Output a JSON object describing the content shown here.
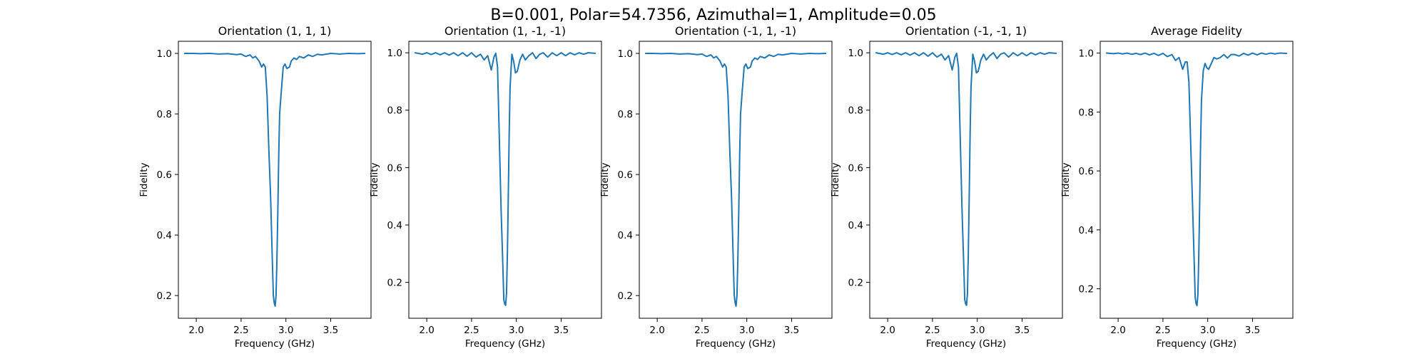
{
  "figure": {
    "suptitle": "B=0.001, Polar=54.7356, Azimuthal=1, Amplitude=0.05",
    "line_color": "#1f77b4"
  },
  "chart_data": [
    {
      "type": "line",
      "title": "Orientation (1, 1, 1)",
      "xlabel": "Frequency (GHz)",
      "ylabel": "Fidelity",
      "xlim": [
        1.8,
        3.95
      ],
      "ylim": [
        0.125,
        1.04
      ],
      "xticks": [
        "2.0",
        "2.5",
        "3.0",
        "3.5"
      ],
      "yticks": [
        "0.2",
        "0.4",
        "0.6",
        "0.8",
        "1.0"
      ],
      "grid": false,
      "series": [
        {
          "x": [
            1.87,
            1.95,
            2.05,
            2.15,
            2.25,
            2.35,
            2.45,
            2.5,
            2.55,
            2.6,
            2.63,
            2.66,
            2.7,
            2.73,
            2.75,
            2.77,
            2.79,
            2.81,
            2.83,
            2.85,
            2.86,
            2.87,
            2.88,
            2.89,
            2.9,
            2.91,
            2.92,
            2.93,
            2.95,
            2.97,
            2.99,
            3.01,
            3.04,
            3.06,
            3.09,
            3.12,
            3.15,
            3.2,
            3.25,
            3.3,
            3.35,
            3.4,
            3.5,
            3.6,
            3.7,
            3.8,
            3.88
          ],
          "y": [
            1.0,
            1.0,
            0.999,
            1.0,
            0.998,
            0.999,
            0.996,
            0.998,
            0.99,
            0.995,
            0.985,
            0.99,
            0.975,
            0.955,
            0.965,
            0.955,
            0.86,
            0.68,
            0.52,
            0.3,
            0.2,
            0.175,
            0.165,
            0.2,
            0.32,
            0.48,
            0.66,
            0.8,
            0.88,
            0.955,
            0.965,
            0.95,
            0.955,
            0.975,
            0.985,
            0.98,
            0.99,
            0.985,
            0.995,
            0.99,
            0.997,
            0.995,
            1.0,
            0.998,
            1.0,
            0.999,
            1.0
          ]
        }
      ]
    },
    {
      "type": "line",
      "title": "Orientation (1, -1, -1)",
      "xlabel": "Frequency (GHz)",
      "ylabel": "Fidelity",
      "xlim": [
        1.8,
        3.95
      ],
      "ylim": [
        0.075,
        1.04
      ],
      "xticks": [
        "2.0",
        "2.5",
        "3.0",
        "3.5"
      ],
      "yticks": [
        "0.2",
        "0.4",
        "0.6",
        "0.8",
        "1.0"
      ],
      "grid": false,
      "series": [
        {
          "x": [
            1.87,
            1.95,
            2.0,
            2.05,
            2.1,
            2.15,
            2.2,
            2.25,
            2.3,
            2.35,
            2.4,
            2.45,
            2.5,
            2.55,
            2.6,
            2.64,
            2.68,
            2.72,
            2.75,
            2.77,
            2.79,
            2.81,
            2.83,
            2.85,
            2.86,
            2.87,
            2.88,
            2.89,
            2.9,
            2.91,
            2.92,
            2.93,
            2.95,
            2.97,
            2.99,
            3.01,
            3.04,
            3.07,
            3.1,
            3.14,
            3.18,
            3.22,
            3.26,
            3.3,
            3.35,
            3.4,
            3.45,
            3.5,
            3.55,
            3.6,
            3.65,
            3.7,
            3.75,
            3.8,
            3.88
          ],
          "y": [
            1.0,
            0.995,
            1.0,
            0.994,
            1.0,
            0.993,
            1.0,
            0.992,
            1.0,
            0.99,
            1.0,
            0.988,
            1.0,
            0.985,
            0.995,
            0.975,
            0.99,
            0.94,
            0.985,
            0.998,
            0.95,
            0.7,
            0.45,
            0.25,
            0.14,
            0.125,
            0.12,
            0.16,
            0.3,
            0.5,
            0.72,
            0.88,
            0.995,
            0.97,
            0.93,
            0.935,
            0.975,
            0.995,
            0.975,
            0.99,
            1.0,
            0.98,
            0.995,
            1.0,
            0.985,
            1.0,
            0.99,
            1.0,
            0.99,
            1.0,
            0.993,
            1.0,
            0.995,
            1.0,
            0.998
          ]
        }
      ]
    },
    {
      "type": "line",
      "title": "Orientation (-1, 1, -1)",
      "xlabel": "Frequency (GHz)",
      "ylabel": "Fidelity",
      "xlim": [
        1.8,
        3.95
      ],
      "ylim": [
        0.125,
        1.04
      ],
      "xticks": [
        "2.0",
        "2.5",
        "3.0",
        "3.5"
      ],
      "yticks": [
        "0.2",
        "0.4",
        "0.6",
        "0.8",
        "1.0"
      ],
      "grid": false,
      "series": [
        {
          "x": [
            1.87,
            1.95,
            2.05,
            2.15,
            2.25,
            2.35,
            2.45,
            2.5,
            2.55,
            2.6,
            2.63,
            2.66,
            2.7,
            2.73,
            2.75,
            2.77,
            2.79,
            2.81,
            2.83,
            2.85,
            2.86,
            2.87,
            2.88,
            2.89,
            2.9,
            2.91,
            2.92,
            2.93,
            2.95,
            2.97,
            2.99,
            3.01,
            3.04,
            3.06,
            3.09,
            3.12,
            3.15,
            3.2,
            3.25,
            3.3,
            3.35,
            3.4,
            3.5,
            3.6,
            3.7,
            3.8,
            3.88
          ],
          "y": [
            1.0,
            1.0,
            0.999,
            1.0,
            0.998,
            0.999,
            0.996,
            0.998,
            0.99,
            0.995,
            0.985,
            0.99,
            0.975,
            0.955,
            0.965,
            0.955,
            0.86,
            0.68,
            0.52,
            0.3,
            0.2,
            0.175,
            0.165,
            0.2,
            0.32,
            0.48,
            0.66,
            0.8,
            0.88,
            0.955,
            0.965,
            0.95,
            0.955,
            0.975,
            0.985,
            0.98,
            0.99,
            0.985,
            0.995,
            0.99,
            0.997,
            0.995,
            1.0,
            0.998,
            1.0,
            0.999,
            1.0
          ]
        }
      ]
    },
    {
      "type": "line",
      "title": "Orientation (-1, -1, 1)",
      "xlabel": "Frequency (GHz)",
      "ylabel": "Fidelity",
      "xlim": [
        1.8,
        3.95
      ],
      "ylim": [
        0.075,
        1.04
      ],
      "xticks": [
        "2.0",
        "2.5",
        "3.0",
        "3.5"
      ],
      "yticks": [
        "0.2",
        "0.4",
        "0.6",
        "0.8",
        "1.0"
      ],
      "grid": false,
      "series": [
        {
          "x": [
            1.87,
            1.95,
            2.0,
            2.05,
            2.1,
            2.15,
            2.2,
            2.25,
            2.3,
            2.35,
            2.4,
            2.45,
            2.5,
            2.55,
            2.6,
            2.64,
            2.68,
            2.72,
            2.75,
            2.77,
            2.79,
            2.81,
            2.83,
            2.85,
            2.86,
            2.87,
            2.88,
            2.89,
            2.9,
            2.91,
            2.92,
            2.93,
            2.95,
            2.97,
            2.99,
            3.01,
            3.04,
            3.07,
            3.1,
            3.14,
            3.18,
            3.22,
            3.26,
            3.3,
            3.35,
            3.4,
            3.45,
            3.5,
            3.55,
            3.6,
            3.65,
            3.7,
            3.75,
            3.8,
            3.88
          ],
          "y": [
            1.0,
            0.995,
            1.0,
            0.994,
            1.0,
            0.993,
            1.0,
            0.992,
            1.0,
            0.99,
            1.0,
            0.988,
            1.0,
            0.985,
            0.995,
            0.975,
            0.99,
            0.94,
            0.985,
            0.998,
            0.95,
            0.7,
            0.45,
            0.25,
            0.14,
            0.125,
            0.12,
            0.16,
            0.3,
            0.5,
            0.72,
            0.88,
            0.995,
            0.97,
            0.93,
            0.935,
            0.975,
            0.995,
            0.975,
            0.99,
            1.0,
            0.98,
            0.995,
            1.0,
            0.985,
            1.0,
            0.99,
            1.0,
            0.99,
            1.0,
            0.993,
            1.0,
            0.995,
            1.0,
            0.998
          ]
        }
      ]
    },
    {
      "type": "line",
      "title": "Average Fidelity",
      "xlabel": "Frequency (GHz)",
      "ylabel": "Fidelity",
      "xlim": [
        1.8,
        3.95
      ],
      "ylim": [
        0.1,
        1.04
      ],
      "xticks": [
        "2.0",
        "2.5",
        "3.0",
        "3.5"
      ],
      "yticks": [
        "0.2",
        "0.4",
        "0.6",
        "0.8",
        "1.0"
      ],
      "grid": false,
      "series": [
        {
          "x": [
            1.87,
            1.95,
            2.0,
            2.05,
            2.1,
            2.15,
            2.2,
            2.25,
            2.3,
            2.35,
            2.4,
            2.45,
            2.5,
            2.55,
            2.6,
            2.64,
            2.68,
            2.72,
            2.75,
            2.77,
            2.79,
            2.81,
            2.83,
            2.85,
            2.86,
            2.87,
            2.88,
            2.89,
            2.9,
            2.91,
            2.92,
            2.93,
            2.95,
            2.97,
            2.99,
            3.01,
            3.04,
            3.07,
            3.1,
            3.14,
            3.18,
            3.22,
            3.26,
            3.3,
            3.35,
            3.4,
            3.45,
            3.5,
            3.55,
            3.6,
            3.65,
            3.7,
            3.75,
            3.8,
            3.88
          ],
          "y": [
            1.0,
            0.998,
            1.0,
            0.997,
            1.0,
            0.996,
            0.999,
            0.995,
            1.0,
            0.994,
            0.999,
            0.992,
            0.999,
            0.988,
            0.995,
            0.975,
            0.985,
            0.945,
            0.97,
            0.97,
            0.9,
            0.69,
            0.49,
            0.28,
            0.17,
            0.15,
            0.143,
            0.18,
            0.31,
            0.49,
            0.69,
            0.84,
            0.94,
            0.965,
            0.95,
            0.945,
            0.965,
            0.985,
            0.98,
            0.985,
            0.995,
            0.983,
            0.995,
            0.995,
            0.99,
            0.999,
            0.993,
            1.0,
            0.994,
            1.0,
            0.996,
            1.0,
            0.997,
            1.0,
            0.999
          ]
        }
      ]
    }
  ]
}
